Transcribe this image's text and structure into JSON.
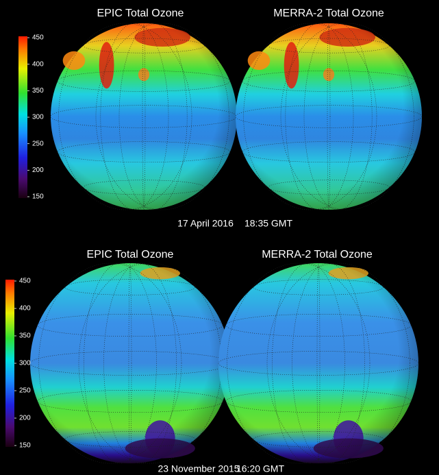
{
  "panels": [
    {
      "titles": [
        "EPIC Total Ozone",
        "MERRA-2 Total Ozone"
      ],
      "colorbar_ticks": [
        450,
        400,
        350,
        300,
        250,
        200,
        150
      ],
      "date": "17 April 2016",
      "time": "18:35 GMT"
    },
    {
      "titles": [
        "EPIC Total Ozone",
        "MERRA-2 Total Ozone"
      ],
      "colorbar_ticks": [
        450,
        400,
        350,
        300,
        250,
        200,
        150
      ],
      "date": "23 November 2015",
      "time": "16:20 GMT"
    }
  ]
}
